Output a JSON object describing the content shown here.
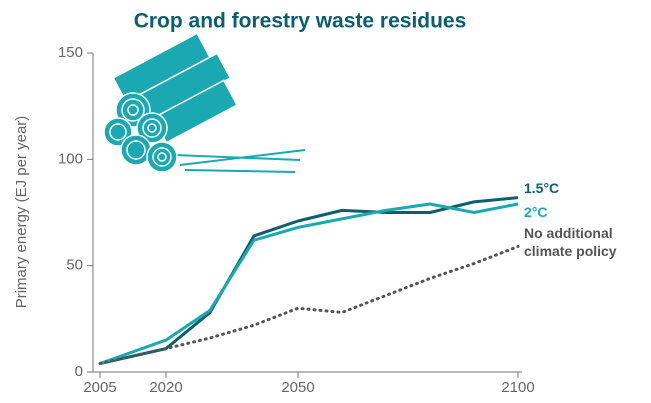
{
  "chart_data": {
    "type": "line",
    "title": "Crop and forestry waste residues",
    "y_label": "Primary energy (EJ per year)",
    "x": [
      2005,
      2020,
      2030,
      2040,
      2050,
      2060,
      2070,
      2080,
      2090,
      2100
    ],
    "xlim": [
      2005,
      2100
    ],
    "xticks": [
      2005,
      2020,
      2050,
      2100
    ],
    "ylim": [
      0,
      150
    ],
    "yticks": [
      0,
      50,
      100,
      150
    ],
    "series": [
      {
        "name": "1.5°C",
        "color": "#0d5f6e",
        "style": "solid",
        "values": [
          4,
          11,
          28,
          64,
          71,
          76,
          75,
          75,
          80,
          82
        ]
      },
      {
        "name": "2°C",
        "color": "#1aa8b2",
        "style": "solid",
        "values": [
          4,
          15,
          29,
          62,
          68,
          72,
          76,
          79,
          75,
          79
        ]
      },
      {
        "name": "No additional climate policy",
        "color": "#555555",
        "style": "dotted",
        "values": [
          4,
          11,
          16,
          22,
          30,
          28,
          36,
          44,
          51,
          59
        ]
      }
    ]
  }
}
